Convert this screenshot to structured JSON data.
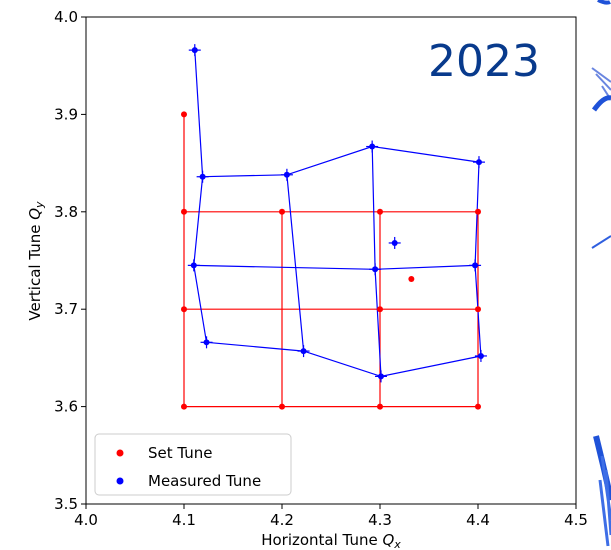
{
  "chart_data": {
    "type": "scatter",
    "title": "",
    "annotation": "2023",
    "xlabel": "Horizontal Tune",
    "xlabel_sym": "Q",
    "xlabel_sub": "x",
    "ylabel": "Vertical Tune",
    "ylabel_sym": "Q",
    "ylabel_sub": "y",
    "xlim": [
      4.0,
      4.5
    ],
    "ylim": [
      3.5,
      4.0
    ],
    "xticks": [
      "4.0",
      "4.1",
      "4.2",
      "4.3",
      "4.4",
      "4.5"
    ],
    "yticks": [
      "3.5",
      "3.6",
      "3.7",
      "3.8",
      "3.9",
      "4.0"
    ],
    "legend_position": "lower-left",
    "colors": {
      "set": "#ff0000",
      "measured": "#0000ff",
      "annotation": "#083a8c"
    },
    "series": [
      {
        "name": "Set Tune",
        "points": [
          {
            "x": 4.1,
            "y": 3.9
          },
          {
            "x": 4.1,
            "y": 3.8
          },
          {
            "x": 4.1,
            "y": 3.7
          },
          {
            "x": 4.1,
            "y": 3.6
          },
          {
            "x": 4.2,
            "y": 3.8
          },
          {
            "x": 4.2,
            "y": 3.6
          },
          {
            "x": 4.3,
            "y": 3.8
          },
          {
            "x": 4.3,
            "y": 3.7
          },
          {
            "x": 4.3,
            "y": 3.6
          },
          {
            "x": 4.4,
            "y": 3.8
          },
          {
            "x": 4.4,
            "y": 3.7
          },
          {
            "x": 4.4,
            "y": 3.6
          },
          {
            "x": 4.332,
            "y": 3.731
          }
        ],
        "lines": [
          [
            [
              4.1,
              3.9
            ],
            [
              4.1,
              3.6
            ]
          ],
          [
            [
              4.2,
              3.8
            ],
            [
              4.2,
              3.6
            ]
          ],
          [
            [
              4.3,
              3.8
            ],
            [
              4.3,
              3.6
            ]
          ],
          [
            [
              4.4,
              3.8
            ],
            [
              4.4,
              3.6
            ]
          ],
          [
            [
              4.1,
              3.8
            ],
            [
              4.4,
              3.8
            ]
          ],
          [
            [
              4.1,
              3.7
            ],
            [
              4.4,
              3.7
            ]
          ],
          [
            [
              4.1,
              3.6
            ],
            [
              4.4,
              3.6
            ]
          ]
        ]
      },
      {
        "name": "Measured Tune",
        "points": [
          {
            "x": 4.111,
            "y": 3.966
          },
          {
            "x": 4.119,
            "y": 3.836
          },
          {
            "x": 4.11,
            "y": 3.745
          },
          {
            "x": 4.123,
            "y": 3.666
          },
          {
            "x": 4.205,
            "y": 3.838
          },
          {
            "x": 4.222,
            "y": 3.657
          },
          {
            "x": 4.292,
            "y": 3.867
          },
          {
            "x": 4.295,
            "y": 3.741
          },
          {
            "x": 4.301,
            "y": 3.631
          },
          {
            "x": 4.401,
            "y": 3.851
          },
          {
            "x": 4.397,
            "y": 3.745
          },
          {
            "x": 4.403,
            "y": 3.652
          },
          {
            "x": 4.315,
            "y": 3.768
          }
        ],
        "lines": [
          [
            [
              4.111,
              3.966
            ],
            [
              4.119,
              3.836
            ],
            [
              4.11,
              3.745
            ],
            [
              4.123,
              3.666
            ]
          ],
          [
            [
              4.205,
              3.838
            ],
            [
              4.222,
              3.657
            ]
          ],
          [
            [
              4.292,
              3.867
            ],
            [
              4.295,
              3.741
            ],
            [
              4.301,
              3.631
            ]
          ],
          [
            [
              4.401,
              3.851
            ],
            [
              4.397,
              3.745
            ],
            [
              4.403,
              3.652
            ]
          ],
          [
            [
              4.119,
              3.836
            ],
            [
              4.205,
              3.838
            ],
            [
              4.292,
              3.867
            ],
            [
              4.401,
              3.851
            ]
          ],
          [
            [
              4.11,
              3.745
            ],
            [
              4.295,
              3.741
            ],
            [
              4.397,
              3.745
            ]
          ],
          [
            [
              4.123,
              3.666
            ],
            [
              4.222,
              3.657
            ],
            [
              4.301,
              3.631
            ],
            [
              4.403,
              3.652
            ]
          ]
        ]
      }
    ]
  }
}
